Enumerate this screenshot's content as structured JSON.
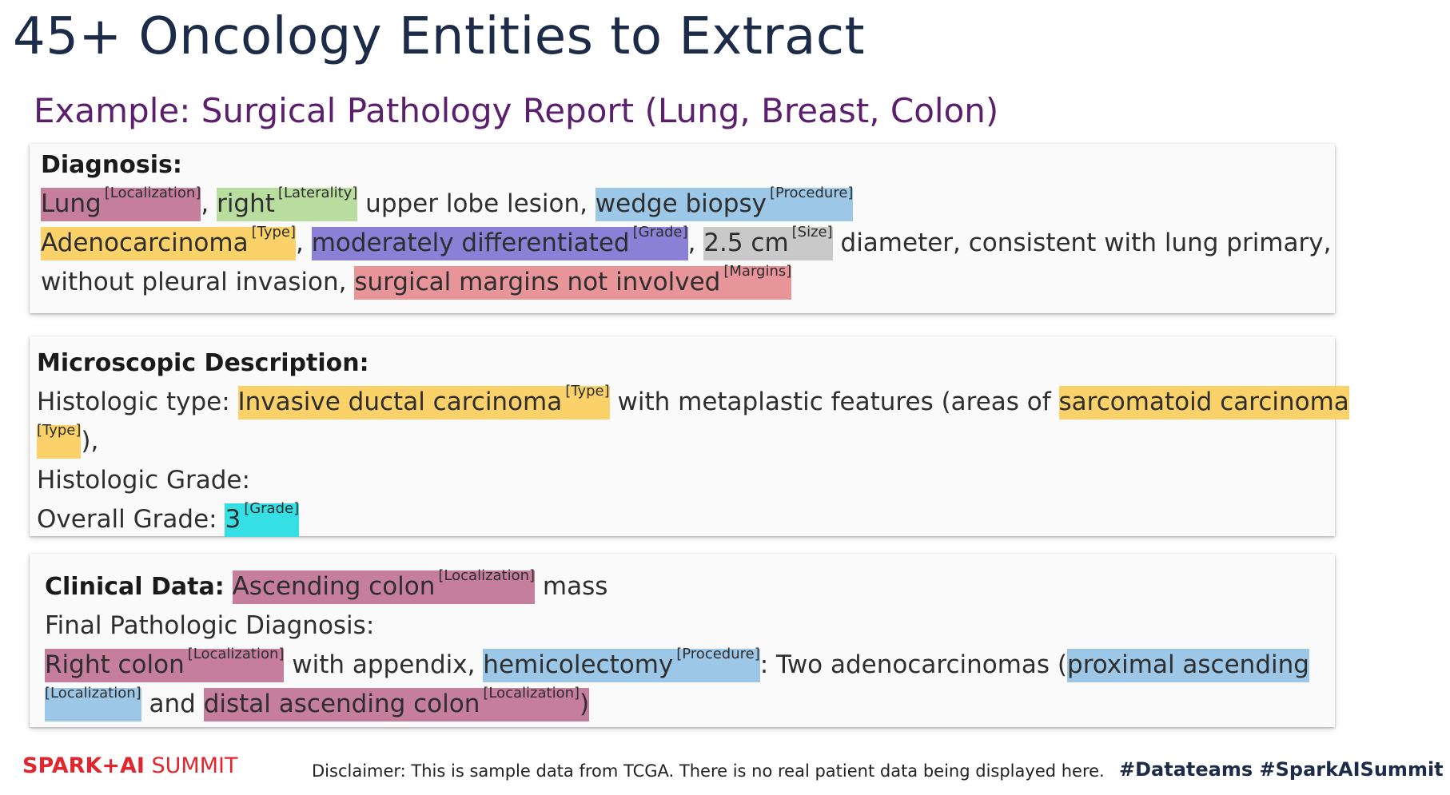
{
  "title": "45+ Oncology Entities to Extract",
  "subtitle": "Example: Surgical Pathology Report (Lung, Breast, Colon)",
  "colors": {
    "Localization": "#c57e9c",
    "Laterality": "#b9dd9f",
    "Procedure": "#9cc7e6",
    "Type": "#fbd26a",
    "Grade": "#8b7fd6",
    "Size": "#c9c9c9",
    "Margins": "#e8959a",
    "Grade_overall": "#35dfe4"
  },
  "diagnosis": {
    "heading": "Diagnosis:",
    "e1": {
      "text": "Lung",
      "tag": "[Localization]"
    },
    "t1": ", ",
    "e2": {
      "text": "right",
      "tag": "[Laterality]"
    },
    "t2": " upper lobe lesion, ",
    "e3": {
      "text": "wedge biopsy",
      "tag": "[Procedure]"
    },
    "e4": {
      "text": "Adenocarcinoma",
      "tag": "[Type]"
    },
    "t3": ", ",
    "e5": {
      "text": "moderately differentiated",
      "tag": "[Grade]"
    },
    "t4": ", ",
    "e6": {
      "text": "2.5 cm",
      "tag": "[Size]"
    },
    "t5": " diameter, consistent with lung primary,",
    "t6": "without pleural invasion, ",
    "e7": {
      "text": "surgical margins not involved",
      "tag": "[Margins]"
    }
  },
  "microscopic": {
    "heading": "Microscopic Description:",
    "t1": "Histologic type: ",
    "e1": {
      "text": "Invasive ductal carcinoma",
      "tag": "[Type]"
    },
    "t2": " with metaplastic features (areas of ",
    "e2": {
      "text": "sarcomatoid carcinoma"
    },
    "e2_tag": "[Type]",
    "t3": "),",
    "grade_label": "Histologic Grade:",
    "overall_label": "Overall Grade: ",
    "e3": {
      "text": "3",
      "tag": "[Grade]"
    }
  },
  "clinical": {
    "heading": "Clinical Data:",
    "t0": " ",
    "e1": {
      "text": "Ascending colon",
      "tag": "[Localization]"
    },
    "t1": " mass",
    "final_label": "Final Pathologic Diagnosis:",
    "e2": {
      "text": "Right colon",
      "tag": "[Localization]"
    },
    "t2": " with appendix, ",
    "e3": {
      "text": "hemicolectomy",
      "tag": "[Procedure]"
    },
    "t3": ": Two adenocarcinomas (",
    "e4": {
      "text": "proximal ascending"
    },
    "e4_tag": "[Localization]",
    "t4": " and ",
    "e5": {
      "text": "distal ascending colon",
      "tag": "[Localization]"
    },
    "t5": ")"
  },
  "footer": {
    "logo_spark": "SPARK",
    "logo_plus": "+",
    "logo_ai": "AI",
    "logo_summit": " SUMMIT",
    "disclaimer": "Disclaimer: This is sample data from TCGA. There is no real patient data being displayed here.",
    "hashtags": "#Datateams  #SparkAISummit"
  }
}
